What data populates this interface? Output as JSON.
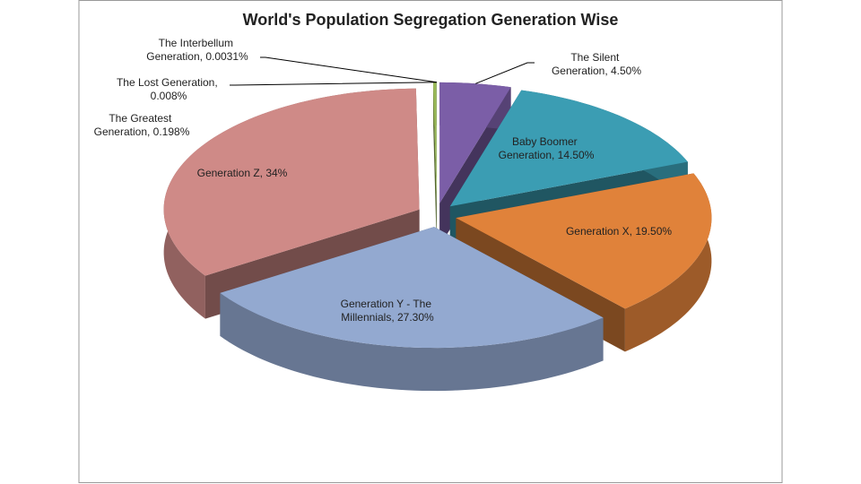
{
  "chart_data": {
    "type": "pie3d",
    "title": "World's Population Segregation Generation Wise",
    "values": [
      4.5,
      14.5,
      19.5,
      27.3,
      34,
      0.198,
      0.008,
      0.0031
    ],
    "value_labels": [
      "The Silent Generation, 4.50%",
      "Baby Boomer Generation, 14.50%",
      "Generation X, 19.50%",
      "Generation Y - The Millennials, 27.30%",
      "Generation Z, 34%",
      "The Greatest Generation, 0.198%",
      "The Lost Generation, 0.008%",
      "The Interbellum Generation, 0.0031%"
    ],
    "colors": [
      "#7b5ea7",
      "#3b9db3",
      "#e0823a",
      "#93a9d0",
      "#cf8a87",
      "#9bbb59",
      "#4f81bd",
      "#c0504d"
    ]
  }
}
